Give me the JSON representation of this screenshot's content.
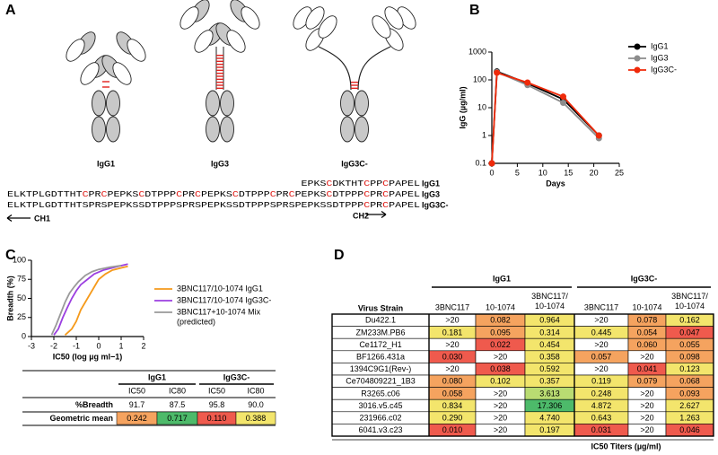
{
  "panel_labels": [
    "A",
    "B",
    "C",
    "D"
  ],
  "diagram": {
    "antibodies": [
      "IgG1",
      "IgG3",
      "IgG3C-"
    ],
    "sequences": [
      {
        "text": "EPKSCDKTHTCPPCPAPEL",
        "label": "IgG1"
      },
      {
        "text": "ELKTPLGDTTHTCPRCPEPKSCDTPPPCPRCPEPKSCDTPPPCPRCPEPKSCDTPPPCPRCPAPEL",
        "label": "IgG3"
      },
      {
        "text": "ELKTPLGDTTHTSPRSPEPKSSDTPPPSPRSPEPKSSDTPPPSPRSPEPKSSDTPPPCPRCPAPEL",
        "label": "IgG3C-"
      }
    ],
    "domains": [
      "CH1",
      "CH2"
    ],
    "highlight_color": "#e0201b"
  },
  "chart_data": [
    {
      "type": "line",
      "yscale": "log",
      "ylabel": "IgG (µg/ml)",
      "xlabel": "Days",
      "x": [
        0,
        1,
        7,
        14,
        21
      ],
      "series": [
        {
          "name": "IgG1",
          "color": "#000000",
          "values": [
            0.1,
            200,
            75,
            20,
            1.0
          ]
        },
        {
          "name": "IgG3",
          "color": "#8c8c8c",
          "values": [
            0.1,
            190,
            65,
            15,
            0.8
          ]
        },
        {
          "name": "IgG3C-",
          "color": "#f02a0a",
          "values": [
            0.1,
            180,
            80,
            25,
            1.0
          ]
        }
      ],
      "xlim": [
        0,
        25
      ],
      "xticks": [
        0,
        5,
        10,
        15,
        20,
        25
      ],
      "ylim": [
        0.1,
        1000
      ],
      "yticks": [
        0.1,
        1,
        10,
        100,
        1000
      ],
      "markers": true,
      "legend": "top-right"
    },
    {
      "type": "line",
      "ylabel": "Breadth (%)",
      "xlabel": "IC50 (log µg ml−1)",
      "series": [
        {
          "name": "3BNC117/10-1074 IgG1",
          "color": "#f59a1b",
          "x": [
            -1.5,
            -1.2,
            -1,
            -0.8,
            -0.6,
            -0.4,
            -0.2,
            0,
            0.3,
            0.6,
            1,
            1.3
          ],
          "values": [
            2,
            10,
            20,
            35,
            45,
            55,
            65,
            75,
            82,
            87,
            90,
            92
          ]
        },
        {
          "name": "3BNC117/10-1074 IgG3C-",
          "color": "#9b3fe0",
          "x": [
            -2,
            -1.8,
            -1.6,
            -1.4,
            -1.2,
            -1,
            -0.8,
            -0.5,
            -0.2,
            0.2,
            0.6,
            1,
            1.3
          ],
          "values": [
            2,
            10,
            25,
            38,
            50,
            60,
            68,
            75,
            82,
            87,
            90,
            93,
            95
          ]
        },
        {
          "name": "3BNC117+10-1074 Mix",
          "color": "#9a9a9a",
          "x": [
            -2.1,
            -1.9,
            -1.7,
            -1.5,
            -1.3,
            -1.1,
            -0.9,
            -0.6,
            -0.3,
            0,
            0.5,
            1
          ],
          "values": [
            2,
            15,
            30,
            45,
            57,
            65,
            72,
            80,
            85,
            88,
            91,
            93
          ]
        }
      ],
      "legend_note": "(predicted)",
      "xlim": [
        -3,
        2
      ],
      "xticks": [
        -3,
        -2,
        -1,
        0,
        1,
        2
      ],
      "ylim": [
        0,
        100
      ],
      "yticks": [
        0,
        25,
        50,
        75,
        100
      ],
      "markers": false,
      "legend": "right"
    }
  ],
  "breadth_table": {
    "groups": [
      "IgG1",
      "IgG3C-"
    ],
    "columns": [
      "IC50",
      "IC80",
      "IC50",
      "IC80"
    ],
    "rows": [
      {
        "label": "%Breadth",
        "cells": [
          "91.7",
          "87.5",
          "95.8",
          "90.0"
        ],
        "fills": [
          "#ffffff",
          "#ffffff",
          "#ffffff",
          "#ffffff"
        ]
      },
      {
        "label": "Geometric mean",
        "cells": [
          "0.242",
          "0.717",
          "0.110",
          "0.388"
        ],
        "fills": [
          "#f5a35f",
          "#4dba6a",
          "#ef5a4d",
          "#f3e56c"
        ]
      }
    ]
  },
  "titer_table": {
    "groups": [
      "IgG1",
      "IgG3C-"
    ],
    "row_header": "Virus Strain",
    "columns": [
      "3BNC117",
      "10-1074",
      "3BNC117/10-1074",
      "3BNC117",
      "10-1074",
      "3BNC117/10-1074"
    ],
    "rows": [
      {
        "strain": "Du422.1",
        "cells": [
          ">20",
          "0.082",
          "0.964",
          ">20",
          "0.078",
          "0.162"
        ],
        "fills": [
          "#ffffff",
          "#f5a35f",
          "#f3e56c",
          "#ffffff",
          "#f5a35f",
          "#f3e56c"
        ]
      },
      {
        "strain": "ZM233M.PB6",
        "cells": [
          "0.181",
          "0.095",
          "0.314",
          "0.445",
          "0.054",
          "0.047"
        ],
        "fills": [
          "#f3e56c",
          "#f5a35f",
          "#f3e56c",
          "#f3e56c",
          "#f5a35f",
          "#ef5a4d"
        ]
      },
      {
        "strain": "Ce1172_H1",
        "cells": [
          ">20",
          "0.022",
          "0.454",
          ">20",
          "0.060",
          "0.055"
        ],
        "fills": [
          "#ffffff",
          "#ef5a4d",
          "#f3e56c",
          "#ffffff",
          "#f5a35f",
          "#f5a35f"
        ]
      },
      {
        "strain": "BF1266.431a",
        "cells": [
          "0.030",
          ">20",
          "0.358",
          "0.057",
          ">20",
          "0.098"
        ],
        "fills": [
          "#ef5a4d",
          "#ffffff",
          "#f3e56c",
          "#f5a35f",
          "#ffffff",
          "#f5a35f"
        ]
      },
      {
        "strain": "1394C9G1(Rev-)",
        "cells": [
          ">20",
          "0.038",
          "0.592",
          ">20",
          "0.041",
          "0.123"
        ],
        "fills": [
          "#ffffff",
          "#ef5a4d",
          "#f3e56c",
          "#ffffff",
          "#ef5a4d",
          "#f3e56c"
        ]
      },
      {
        "strain": "Ce704809221_1B3",
        "cells": [
          "0.080",
          "0.102",
          "0.357",
          "0.119",
          "0.079",
          "0.068"
        ],
        "fills": [
          "#f5a35f",
          "#f3e56c",
          "#f3e56c",
          "#f3e56c",
          "#f5a35f",
          "#f5a35f"
        ]
      },
      {
        "strain": "R3265.c06",
        "cells": [
          "0.058",
          ">20",
          "3.613",
          "0.248",
          ">20",
          "0.093"
        ],
        "fills": [
          "#f5a35f",
          "#ffffff",
          "#b9dc72",
          "#f3e56c",
          "#ffffff",
          "#f5a35f"
        ]
      },
      {
        "strain": "3016.v5.c45",
        "cells": [
          "0.834",
          ">20",
          "17.306",
          "4.872",
          ">20",
          "2.627"
        ],
        "fills": [
          "#f3e56c",
          "#ffffff",
          "#4dba6a",
          "#f3e56c",
          "#ffffff",
          "#f3e56c"
        ]
      },
      {
        "strain": "231966.c02",
        "cells": [
          "0.290",
          ">20",
          "4.740",
          "0.643",
          ">20",
          "1.263"
        ],
        "fills": [
          "#f3e56c",
          "#ffffff",
          "#f3e56c",
          "#f3e56c",
          "#ffffff",
          "#f3e56c"
        ]
      },
      {
        "strain": "6041.v3.c23",
        "cells": [
          "0.010",
          ">20",
          "0.197",
          "0.031",
          ">20",
          "0.046"
        ],
        "fills": [
          "#ef5a4d",
          "#ffffff",
          "#f3e56c",
          "#ef5a4d",
          "#ffffff",
          "#ef5a4d"
        ]
      }
    ],
    "caption": "IC50 Titers (µg/ml)"
  }
}
